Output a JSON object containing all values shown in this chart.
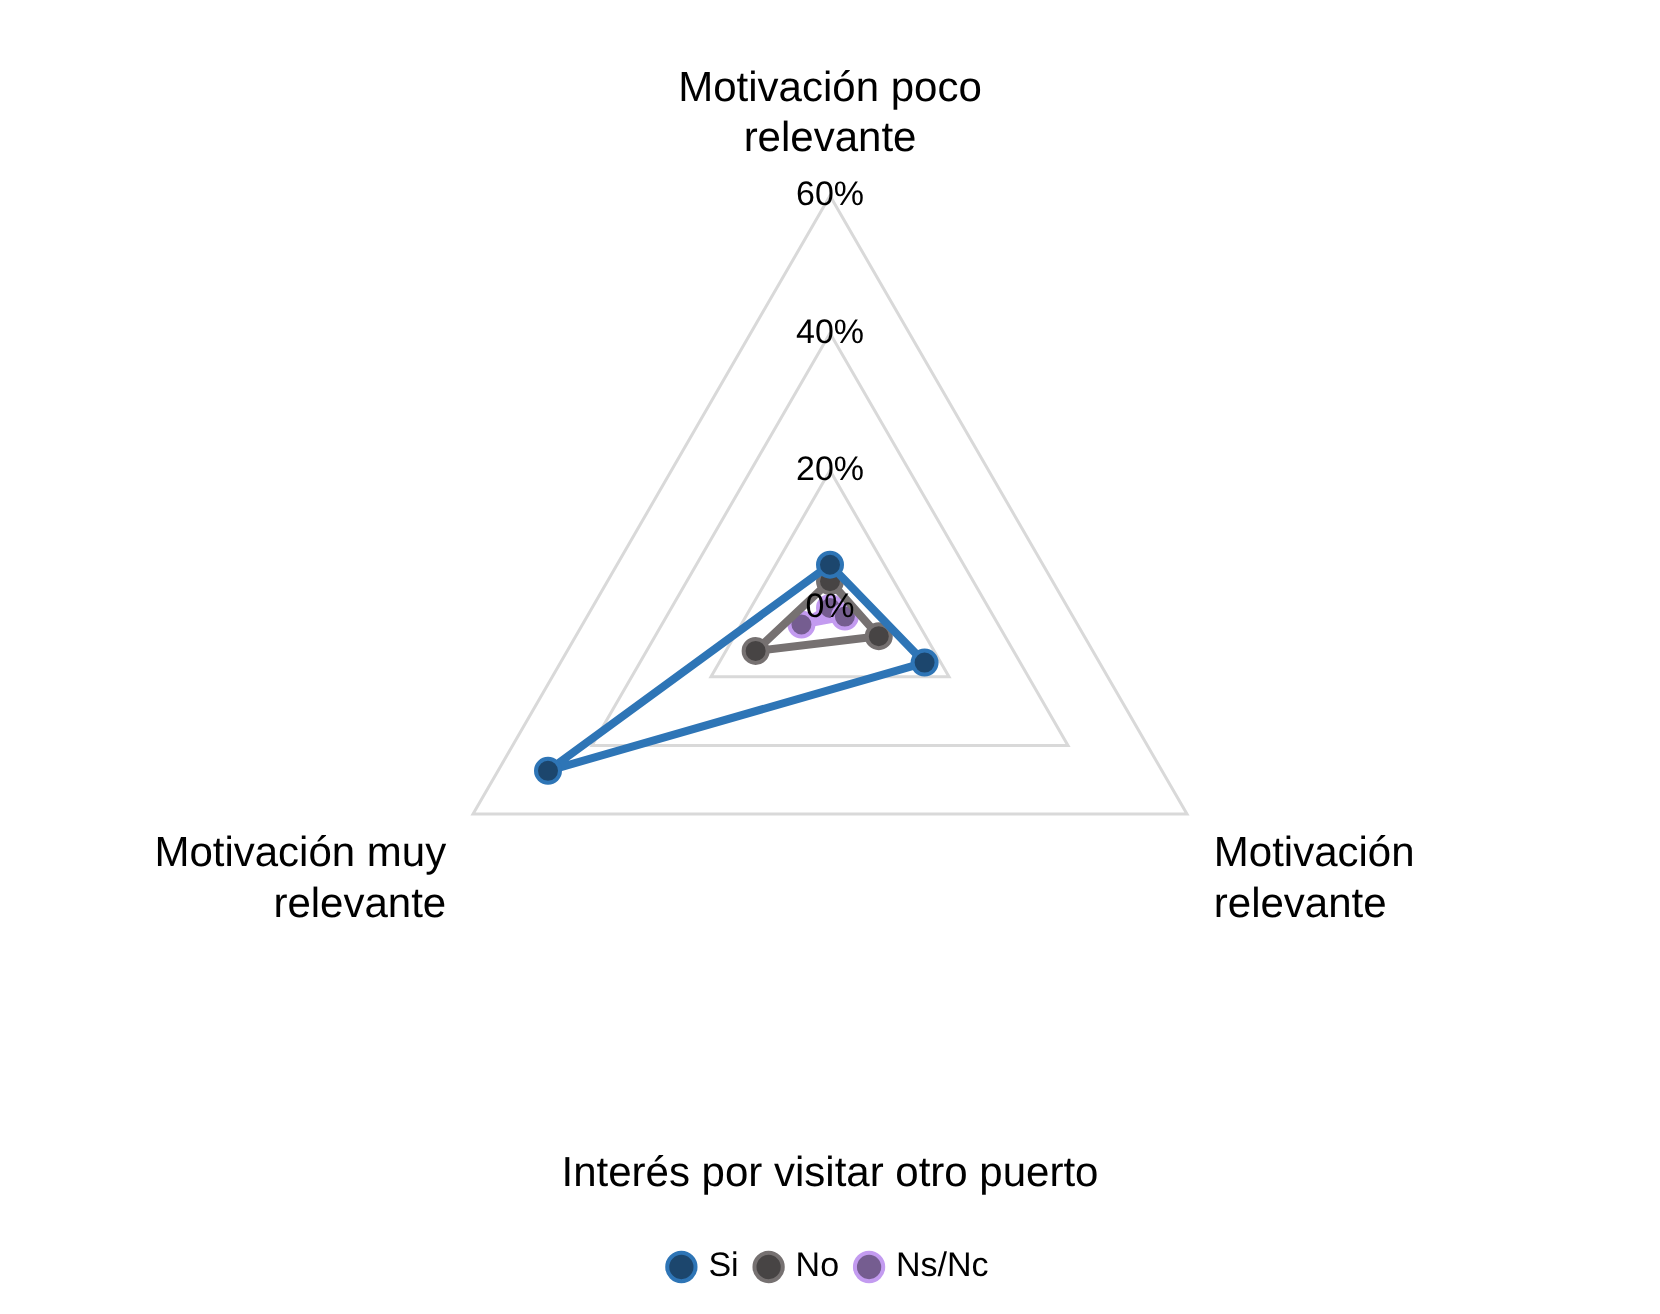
{
  "chart_data": {
    "type": "radar",
    "title": "Interés por visitar otro puerto",
    "categories": [
      "Motivación poco relevante",
      "Motivación relevante",
      "Motivación muy relevante"
    ],
    "series": [
      {
        "name": "Si",
        "color": "#2e75b6",
        "values": [
          6.3,
          15.9,
          47.4
        ]
      },
      {
        "name": "No",
        "color": "#767171",
        "values": [
          3.9,
          8.2,
          12.5
        ]
      },
      {
        "name": "Ns/Nc",
        "color": "#c39bf0",
        "values": [
          0,
          2.5,
          4.8
        ]
      }
    ],
    "ylim": [
      0,
      60
    ],
    "yticks": [
      {
        "value": 0,
        "label": "0%"
      },
      {
        "value": 20,
        "label": "20%"
      },
      {
        "value": 40,
        "label": "40%"
      },
      {
        "value": 60,
        "label": "60%"
      }
    ],
    "grid": true,
    "legend": "bottom",
    "marker": "circle",
    "line_style": "solid"
  }
}
